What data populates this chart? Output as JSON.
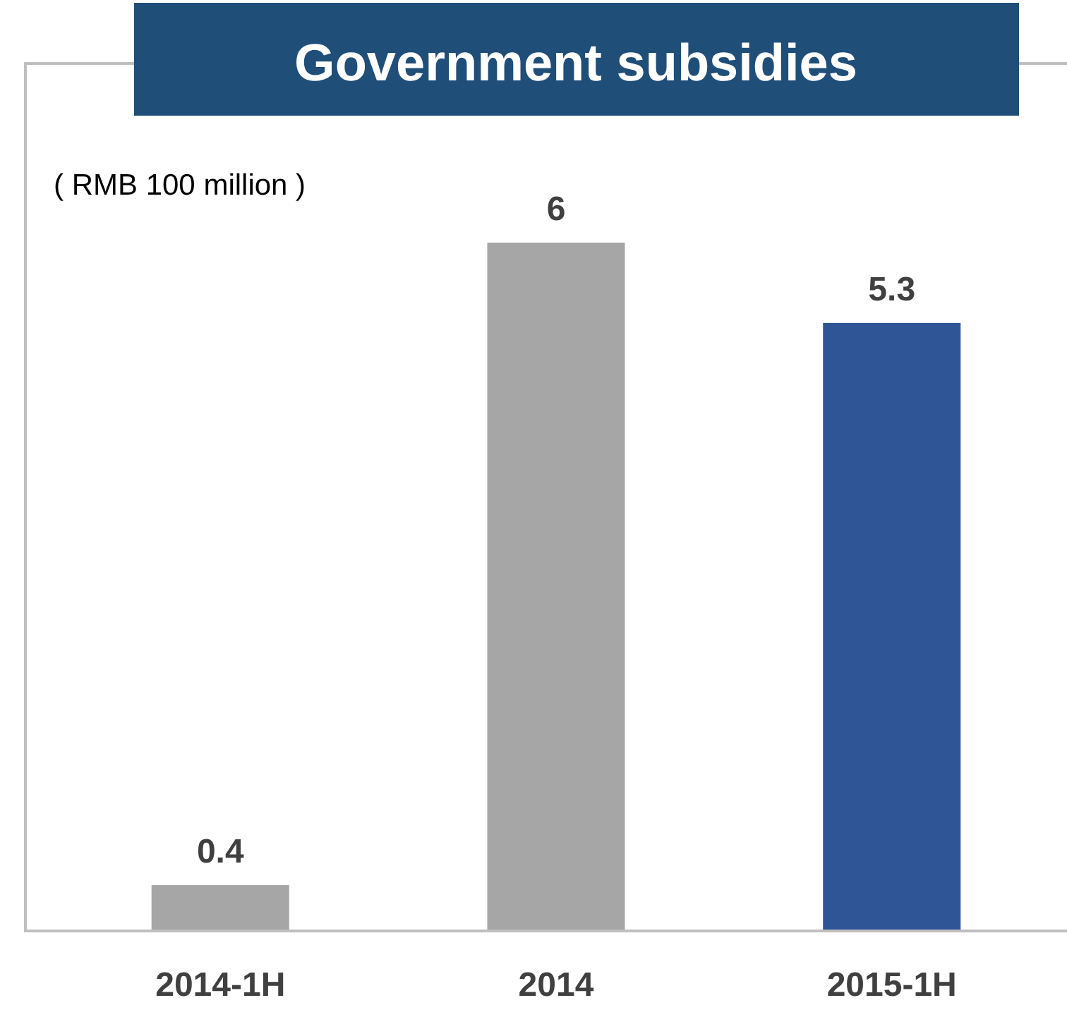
{
  "chart_data": {
    "type": "bar",
    "title": "Government subsidies",
    "ylabel": "( RMB 100 million )",
    "categories": [
      "2014-1H",
      "2014",
      "2015-1H"
    ],
    "values": [
      0.4,
      6,
      5.3
    ],
    "colors": [
      "#a6a6a6",
      "#a6a6a6",
      "#2f5597"
    ],
    "data_labels": true
  }
}
